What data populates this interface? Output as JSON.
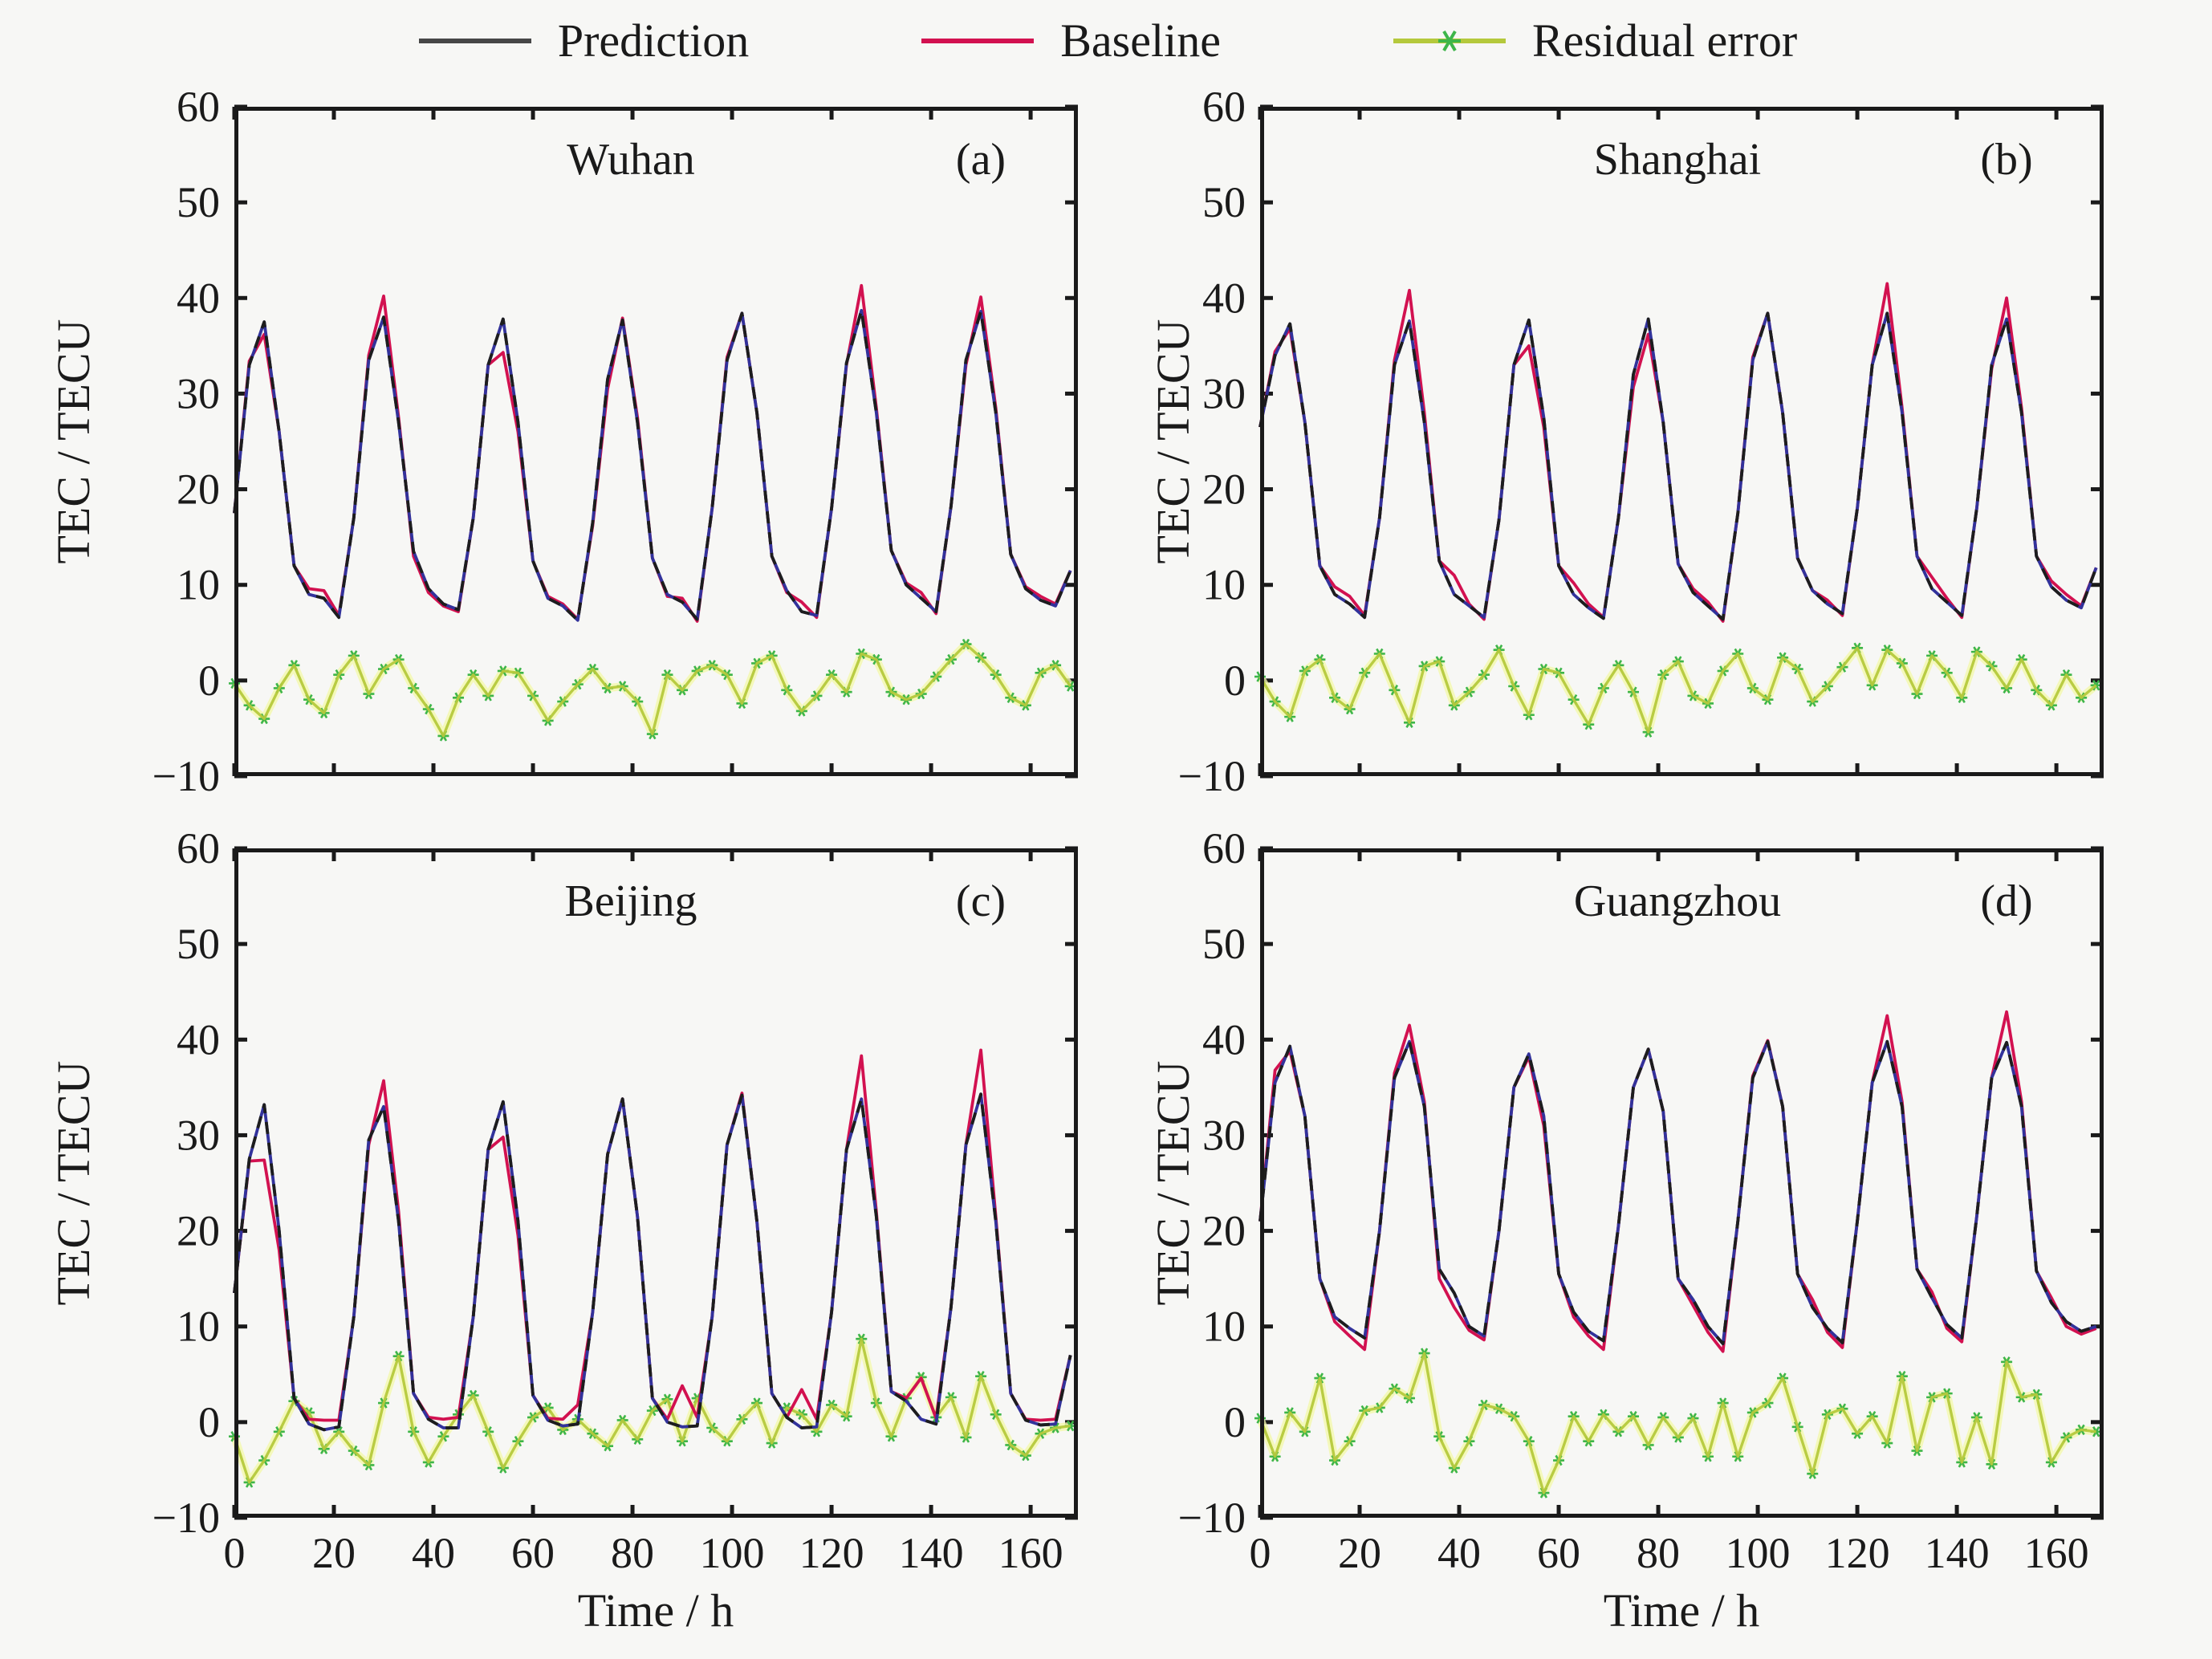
{
  "figure": {
    "background": "#f7f7f5"
  },
  "legend": {
    "items": [
      {
        "label": "Prediction",
        "color": "#474747",
        "type": "line"
      },
      {
        "label": "Baseline",
        "color": "#d21150",
        "type": "line"
      },
      {
        "label": "Residual error",
        "color": "#b5c93c",
        "marker_color": "#3db54a",
        "type": "line-asterisk"
      }
    ]
  },
  "axes": {
    "xlabel": "Time / h",
    "ylabel": "TEC / TECU",
    "xlim": [
      0,
      169.5
    ],
    "ylim": [
      -10,
      60
    ],
    "x_ticks": [
      0,
      20,
      40,
      60,
      80,
      100,
      120,
      140,
      160
    ],
    "y_ticks": [
      -10,
      0,
      10,
      20,
      30,
      40,
      50,
      60
    ],
    "grid": false,
    "box": true
  },
  "chart_data": [
    {
      "type": "line",
      "panel": "a",
      "title": "Wuhan",
      "label": "(a)",
      "x_step": 3,
      "x_unit": "h",
      "series": [
        {
          "name": "Prediction",
          "color": "#32329b",
          "dash_overlay_color": "#1d1d1d",
          "values": [
            17.5,
            33.0,
            37.5,
            26.0,
            12.0,
            9.0,
            8.6,
            6.6,
            17.0,
            33.5,
            38.0,
            27.0,
            13.5,
            9.6,
            8.0,
            7.4,
            17.0,
            33.0,
            37.8,
            27.0,
            12.5,
            8.6,
            7.8,
            6.3,
            16.5,
            31.5,
            37.7,
            27.0,
            12.8,
            9.0,
            8.2,
            6.4,
            18.0,
            33.5,
            38.4,
            28.0,
            13.0,
            9.4,
            7.2,
            6.8,
            18.0,
            33.2,
            38.7,
            28.0,
            13.6,
            10.0,
            8.6,
            7.2,
            18.2,
            33.5,
            38.6,
            28.0,
            13.2,
            9.6,
            8.4,
            7.8,
            11.5
          ]
        },
        {
          "name": "Baseline",
          "color": "#d21150",
          "values": [
            17.5,
            33.4,
            36.2,
            26.0,
            12.0,
            9.6,
            9.4,
            6.8,
            17.0,
            34.0,
            40.2,
            27.5,
            13.0,
            9.2,
            7.8,
            7.2,
            17.0,
            33.0,
            34.3,
            26.0,
            12.5,
            8.8,
            8.0,
            6.4,
            16.2,
            30.5,
            37.9,
            27.5,
            12.8,
            8.8,
            8.6,
            6.2,
            18.0,
            33.8,
            38.4,
            28.0,
            13.0,
            9.2,
            8.2,
            6.6,
            18.0,
            33.0,
            41.3,
            28.5,
            13.6,
            10.2,
            9.2,
            7.0,
            18.2,
            33.0,
            40.1,
            28.5,
            13.2,
            9.8,
            8.8,
            8.0,
            11.5
          ]
        },
        {
          "name": "Residual error",
          "color": "#b5c93c",
          "halo_color": "#f2f7ad",
          "marker_color": "#3db54a",
          "values": [
            -0.3,
            -2.6,
            -4.0,
            -0.8,
            1.6,
            -2.0,
            -3.4,
            0.6,
            2.6,
            -1.4,
            1.2,
            2.2,
            -0.8,
            -3.0,
            -5.8,
            -1.8,
            0.6,
            -1.6,
            1.0,
            0.8,
            -1.6,
            -4.2,
            -2.2,
            -0.4,
            1.2,
            -0.8,
            -0.6,
            -2.2,
            -5.6,
            0.6,
            -1.0,
            1.0,
            1.6,
            0.6,
            -2.4,
            1.8,
            2.6,
            -1.0,
            -3.2,
            -1.6,
            0.6,
            -1.2,
            2.8,
            2.2,
            -1.2,
            -2.0,
            -1.4,
            0.4,
            2.2,
            3.8,
            2.4,
            0.6,
            -1.8,
            -2.6,
            0.8,
            1.6,
            -0.6
          ]
        }
      ]
    },
    {
      "type": "line",
      "panel": "b",
      "title": "Shanghai",
      "label": "(b)",
      "x_step": 3,
      "x_unit": "h",
      "series": [
        {
          "name": "Prediction",
          "color": "#32329b",
          "dash_overlay_color": "#1d1d1d",
          "values": [
            26.5,
            34.0,
            37.3,
            27.0,
            12.0,
            9.0,
            8.0,
            6.6,
            17.0,
            33.0,
            37.6,
            27.0,
            12.5,
            9.0,
            7.8,
            6.6,
            16.8,
            33.0,
            37.7,
            27.5,
            12.0,
            9.0,
            7.6,
            6.5,
            17.0,
            32.0,
            37.8,
            27.0,
            12.2,
            9.2,
            7.8,
            6.4,
            17.5,
            33.5,
            38.4,
            28.0,
            12.8,
            9.4,
            8.0,
            7.0,
            18.0,
            33.0,
            38.4,
            28.0,
            13.0,
            9.6,
            8.2,
            6.8,
            18.0,
            33.0,
            37.8,
            28.0,
            13.0,
            9.8,
            8.4,
            7.6,
            11.8
          ]
        },
        {
          "name": "Baseline",
          "color": "#d21150",
          "values": [
            26.5,
            34.4,
            36.8,
            27.0,
            12.0,
            9.8,
            8.8,
            6.8,
            17.0,
            33.5,
            40.8,
            28.0,
            12.5,
            11.0,
            8.0,
            6.4,
            16.8,
            33.0,
            35.0,
            26.5,
            12.0,
            10.2,
            8.0,
            6.6,
            17.0,
            30.7,
            36.2,
            27.0,
            12.2,
            9.6,
            8.2,
            6.2,
            17.5,
            33.8,
            38.4,
            28.0,
            12.8,
            9.4,
            8.4,
            6.8,
            18.0,
            33.0,
            41.5,
            28.5,
            13.0,
            10.8,
            8.6,
            6.6,
            18.0,
            32.6,
            40.0,
            28.5,
            13.0,
            10.4,
            9.0,
            7.8,
            11.8
          ]
        },
        {
          "name": "Residual error",
          "color": "#b5c93c",
          "halo_color": "#f2f7ad",
          "marker_color": "#3db54a",
          "values": [
            0.4,
            -2.2,
            -3.8,
            1.0,
            2.2,
            -1.8,
            -3.0,
            0.8,
            2.8,
            -1.0,
            -4.4,
            1.5,
            2.0,
            -2.6,
            -1.2,
            0.6,
            3.2,
            -0.6,
            -3.6,
            1.2,
            0.8,
            -2.0,
            -4.6,
            -0.8,
            1.6,
            -1.2,
            -5.4,
            0.6,
            2.0,
            -1.6,
            -2.4,
            1.0,
            2.8,
            -0.8,
            -2.0,
            2.4,
            1.2,
            -2.2,
            -0.6,
            1.4,
            3.4,
            -0.5,
            3.2,
            1.8,
            -1.4,
            2.6,
            0.8,
            -1.8,
            3.0,
            1.5,
            -0.8,
            2.2,
            -1.0,
            -2.6,
            0.6,
            -1.8,
            -0.5
          ]
        }
      ]
    },
    {
      "type": "line",
      "panel": "c",
      "title": "Beijing",
      "label": "(c)",
      "x_step": 3,
      "x_unit": "h",
      "series": [
        {
          "name": "Prediction",
          "color": "#32329b",
          "dash_overlay_color": "#1d1d1d",
          "values": [
            13.5,
            27.5,
            33.2,
            20.0,
            2.5,
            -0.2,
            -0.8,
            -0.5,
            11.0,
            29.5,
            33.0,
            21.0,
            3.0,
            0.3,
            -0.6,
            -0.6,
            11.0,
            28.5,
            33.5,
            21.0,
            2.8,
            0.2,
            -0.4,
            -0.2,
            11.5,
            28.0,
            33.8,
            21.5,
            2.5,
            0.0,
            -0.5,
            -0.4,
            11.0,
            29.0,
            34.2,
            21.0,
            3.0,
            0.5,
            -0.6,
            -0.5,
            11.5,
            28.5,
            33.8,
            21.5,
            3.2,
            2.2,
            0.3,
            -0.2,
            12.0,
            29.0,
            34.3,
            21.0,
            3.0,
            0.2,
            -0.3,
            -0.2,
            7.0
          ]
        },
        {
          "name": "Baseline",
          "color": "#d21150",
          "values": [
            13.5,
            27.3,
            27.4,
            18.0,
            2.5,
            0.3,
            0.2,
            0.2,
            11.0,
            29.0,
            35.7,
            22.0,
            3.0,
            0.5,
            0.3,
            0.5,
            11.0,
            28.5,
            29.8,
            19.5,
            2.8,
            0.4,
            0.3,
            1.8,
            11.5,
            28.0,
            33.8,
            21.5,
            2.5,
            0.3,
            3.8,
            0.5,
            11.0,
            29.0,
            34.4,
            21.0,
            3.0,
            0.5,
            3.4,
            0.3,
            11.5,
            28.5,
            38.3,
            22.0,
            3.2,
            2.5,
            4.6,
            0.4,
            12.0,
            29.0,
            38.9,
            21.5,
            3.0,
            0.3,
            0.2,
            0.3,
            7.0
          ]
        },
        {
          "name": "Residual error",
          "color": "#b5c93c",
          "halo_color": "#f2f7ad",
          "marker_color": "#3db54a",
          "values": [
            -1.5,
            -6.3,
            -4.0,
            -1.0,
            2.2,
            1.0,
            -2.8,
            -1.0,
            -3.0,
            -4.5,
            2.0,
            6.9,
            -1.0,
            -4.2,
            -1.5,
            0.8,
            2.8,
            -1.0,
            -4.8,
            -2.0,
            0.5,
            1.5,
            -0.8,
            0.3,
            -1.2,
            -2.5,
            0.2,
            -1.8,
            1.2,
            2.4,
            -2.0,
            2.5,
            -0.6,
            -2.0,
            0.3,
            2.0,
            -2.2,
            1.5,
            0.8,
            -1.0,
            1.8,
            0.6,
            8.7,
            2.0,
            -1.5,
            2.5,
            4.7,
            0.5,
            2.6,
            -1.6,
            4.8,
            0.8,
            -2.4,
            -3.5,
            -1.2,
            -0.6,
            -0.4
          ]
        }
      ]
    },
    {
      "type": "line",
      "panel": "d",
      "title": "Guangzhou",
      "label": "(d)",
      "x_step": 3,
      "x_unit": "h",
      "series": [
        {
          "name": "Prediction",
          "color": "#32329b",
          "dash_overlay_color": "#1d1d1d",
          "values": [
            21.0,
            35.5,
            39.3,
            32.0,
            15.0,
            11.0,
            9.8,
            8.8,
            20.0,
            36.0,
            39.8,
            33.0,
            16.0,
            13.5,
            10.0,
            9.0,
            20.0,
            35.0,
            38.5,
            32.0,
            15.5,
            11.5,
            9.5,
            8.5,
            20.5,
            35.0,
            39.0,
            32.5,
            15.0,
            12.8,
            10.0,
            8.2,
            21.0,
            36.0,
            39.8,
            33.0,
            15.5,
            12.0,
            9.8,
            8.3,
            21.0,
            35.5,
            39.8,
            33.0,
            16.0,
            13.0,
            10.2,
            8.8,
            21.5,
            36.0,
            39.7,
            33.0,
            15.8,
            12.5,
            10.5,
            9.5,
            10.0
          ]
        },
        {
          "name": "Baseline",
          "color": "#d21150",
          "values": [
            21.0,
            36.8,
            38.8,
            32.0,
            15.0,
            10.5,
            9.0,
            7.6,
            20.0,
            36.5,
            41.5,
            33.5,
            15.0,
            12.0,
            9.6,
            8.6,
            20.0,
            35.0,
            38.2,
            31.0,
            15.5,
            11.0,
            9.0,
            7.6,
            20.5,
            35.0,
            39.0,
            32.5,
            15.0,
            12.2,
            9.4,
            7.4,
            21.0,
            36.2,
            39.9,
            33.0,
            15.5,
            12.8,
            9.4,
            7.8,
            21.0,
            35.5,
            42.5,
            33.5,
            16.0,
            13.6,
            9.8,
            8.4,
            21.5,
            36.0,
            42.9,
            33.5,
            15.8,
            13.0,
            10.0,
            9.2,
            9.8
          ]
        },
        {
          "name": "Residual error",
          "color": "#b5c93c",
          "halo_color": "#f2f7ad",
          "marker_color": "#3db54a",
          "values": [
            0.4,
            -3.6,
            1.0,
            -1.0,
            4.6,
            -4.0,
            -2.0,
            1.2,
            1.5,
            3.5,
            2.5,
            7.2,
            -1.5,
            -4.8,
            -2.0,
            1.8,
            1.4,
            0.6,
            -2.0,
            -7.4,
            -4.0,
            0.6,
            -2.0,
            0.8,
            -1.0,
            0.6,
            -2.4,
            0.5,
            -1.6,
            0.4,
            -3.6,
            2.0,
            -3.6,
            1.0,
            2.0,
            4.6,
            -0.5,
            -5.4,
            0.8,
            1.4,
            -1.2,
            0.6,
            -2.2,
            4.8,
            -3.0,
            2.6,
            3.0,
            -4.2,
            0.5,
            -4.4,
            6.3,
            2.6,
            2.9,
            -4.2,
            -1.6,
            -0.8,
            -1.0
          ]
        }
      ]
    }
  ]
}
